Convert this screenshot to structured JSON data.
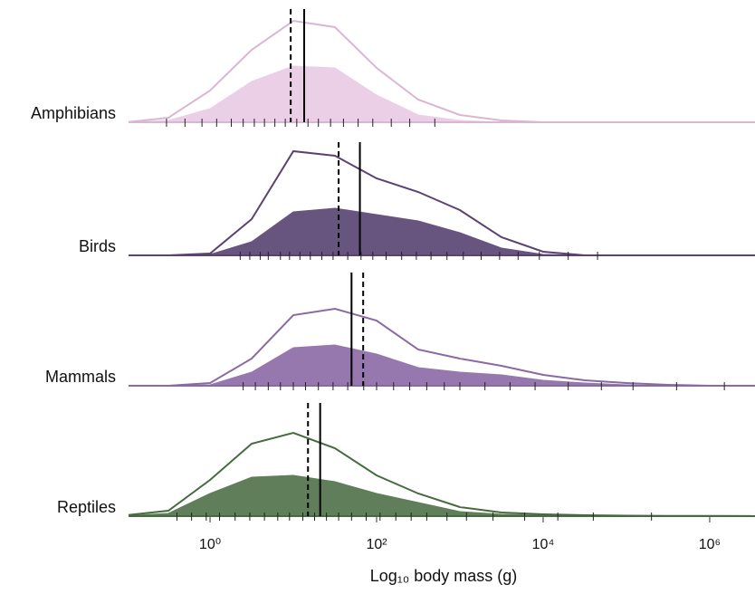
{
  "chart_data": {
    "type": "ridgeline",
    "xlabel": "Log₁₀ body mass (g)",
    "xscale": "log",
    "xlim": [
      0.105,
      3500000
    ],
    "xticks": [
      {
        "value": 1,
        "label": "10⁰"
      },
      {
        "value": 100,
        "label": "10²"
      },
      {
        "value": 10000,
        "label": "10⁴"
      },
      {
        "value": 1000000,
        "label": "10⁶"
      }
    ],
    "ylim": [
      0,
      125
    ],
    "x": [
      0.1,
      0.316,
      1,
      3.16,
      10,
      31.6,
      100,
      316,
      1000,
      3162,
      10000,
      31623,
      100000,
      316228,
      1000000,
      3162278
    ],
    "panels": [
      {
        "name": "Amphibians",
        "line_color": "#dbb6d3",
        "fill_color": "#ebcfe6",
        "outline": [
          0,
          5,
          35,
          80,
          112,
          105,
          60,
          25,
          8,
          2,
          0,
          0,
          0,
          0,
          0,
          0
        ],
        "filled": [
          0,
          2,
          15,
          45,
          62,
          60,
          30,
          8,
          2,
          0,
          0,
          0,
          0,
          0,
          0,
          0
        ],
        "mean": 13.5,
        "median": 9.3,
        "rug": [
          0.3,
          0.5,
          0.8,
          1.2,
          1.8,
          2.5,
          3.4,
          4.5,
          6,
          8,
          11,
          15,
          20,
          28,
          40,
          60,
          90,
          150,
          250,
          500
        ]
      },
      {
        "name": "Birds",
        "line_color": "#594373",
        "fill_color": "#67547f",
        "outline": [
          0,
          0,
          2,
          40,
          115,
          110,
          85,
          70,
          50,
          20,
          4,
          0,
          0,
          0,
          0,
          0
        ],
        "filled": [
          0,
          0,
          1,
          15,
          48,
          52,
          45,
          38,
          25,
          8,
          1,
          0,
          0,
          0,
          0,
          0
        ],
        "mean": 63,
        "median": 35,
        "rug": [
          2.3,
          3,
          4,
          5,
          7,
          9,
          12,
          16,
          22,
          30,
          45,
          65,
          90,
          130,
          200,
          300,
          450,
          700,
          1100,
          1800,
          3000,
          5000,
          9000,
          20000,
          45000
        ]
      },
      {
        "name": "Mammals",
        "line_color": "#8a6aa3",
        "fill_color": "#9678ae",
        "outline": [
          0,
          0,
          3,
          30,
          78,
          85,
          72,
          40,
          30,
          22,
          12,
          6,
          3,
          1,
          0,
          0
        ],
        "filled": [
          0,
          0,
          1,
          15,
          42,
          45,
          35,
          20,
          15,
          12,
          6,
          3,
          1,
          0,
          0,
          0
        ],
        "mean": 50,
        "median": 69,
        "rug": [
          2.5,
          3.5,
          5,
          7,
          10,
          14,
          20,
          30,
          45,
          70,
          100,
          160,
          250,
          400,
          650,
          1000,
          2000,
          4000,
          8000,
          20000,
          50000,
          120000,
          400000,
          1500000
        ]
      },
      {
        "name": "Reptiles",
        "line_color": "#466b40",
        "fill_color": "#5f7e59",
        "outline": [
          1,
          6,
          40,
          80,
          92,
          75,
          45,
          25,
          10,
          4,
          2,
          1,
          0.5,
          0.3,
          0.2,
          0.1
        ],
        "filled": [
          0.5,
          3,
          25,
          43,
          45,
          38,
          25,
          15,
          5,
          2,
          1,
          0.5,
          0.3,
          0.2,
          0.1,
          0
        ],
        "mean": 21,
        "median": 15,
        "rug": [
          0.4,
          0.6,
          0.9,
          1.3,
          2,
          3,
          4.5,
          6.5,
          9,
          13,
          18,
          25,
          35,
          50,
          75,
          110,
          170,
          260,
          400,
          700,
          1200,
          2500,
          6000,
          15000,
          40000,
          200000
        ]
      }
    ]
  }
}
